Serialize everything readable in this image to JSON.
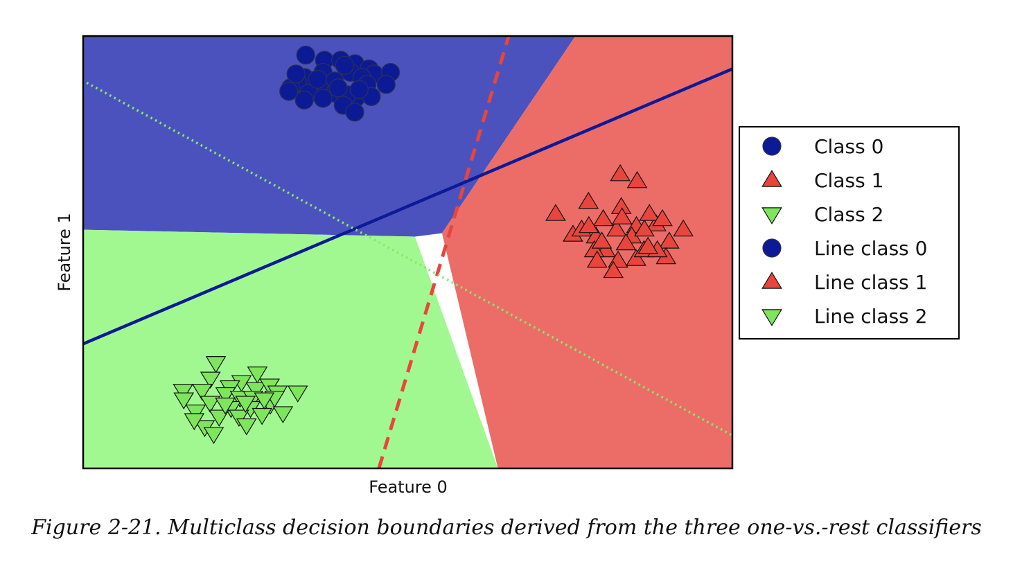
{
  "chart_data": {
    "type": "scatter",
    "title": "",
    "xlabel": "Feature 0",
    "ylabel": "Feature 1",
    "xlim": [
      -10,
      8
    ],
    "ylim": [
      -10,
      15
    ],
    "grid": false,
    "ticks_visible": false,
    "legend_location": "outside-right",
    "legend": [
      {
        "label": "Class 0",
        "marker": "circle",
        "color": "#0d1a96"
      },
      {
        "label": "Class 1",
        "marker": "triangle-up",
        "color": "#e8453c"
      },
      {
        "label": "Class 2",
        "marker": "triangle-down",
        "color": "#7ee65c"
      },
      {
        "label": "Line class 0",
        "marker": "circle",
        "color": "#0d1a96"
      },
      {
        "label": "Line class 1",
        "marker": "triangle-up",
        "color": "#e8453c"
      },
      {
        "label": "Line class 2",
        "marker": "triangle-down",
        "color": "#7ee65c"
      }
    ],
    "regions": [
      {
        "class": "Class 0",
        "color": "#4b52be",
        "polygon": [
          [
            -10,
            15
          ],
          [
            3.65,
            15
          ],
          [
            -0.05,
            3.6
          ],
          [
            -0.8,
            3.4
          ],
          [
            -10,
            3.8
          ]
        ]
      },
      {
        "class": "Class 1",
        "color": "#ec6d68",
        "polygon": [
          [
            3.65,
            15
          ],
          [
            8,
            15
          ],
          [
            8,
            -10
          ],
          [
            1.5,
            -10
          ],
          [
            -0.05,
            3.6
          ]
        ]
      },
      {
        "class": "Class 2",
        "color": "#a2f890",
        "polygon": [
          [
            -10,
            3.8
          ],
          [
            -0.8,
            3.4
          ],
          [
            1.5,
            -10
          ],
          [
            -10,
            -10
          ]
        ]
      }
    ],
    "decision_lines": [
      {
        "name": "Line class 0",
        "style": "solid",
        "color": "#0d1a96",
        "points": [
          [
            -10,
            -2.8
          ],
          [
            8,
            13.1
          ]
        ]
      },
      {
        "name": "Line class 1",
        "style": "dashed",
        "color": "#e8453c",
        "points": [
          [
            -1.8,
            -10
          ],
          [
            1.8,
            15
          ]
        ]
      },
      {
        "name": "Line class 2",
        "style": "dotted",
        "color": "#86e86b",
        "points": [
          [
            -9.9,
            12.3
          ],
          [
            8,
            -8.1
          ]
        ]
      }
    ],
    "series": [
      {
        "name": "Class 0",
        "marker": "circle",
        "color": "#0d1a96",
        "points": [
          [
            -3.83,
            13.9
          ],
          [
            -3.31,
            13.6
          ],
          [
            -2.86,
            13.6
          ],
          [
            -2.46,
            13.4
          ],
          [
            -2.07,
            13.1
          ],
          [
            -3.35,
            12.9
          ],
          [
            -2.59,
            12.9
          ],
          [
            -1.93,
            12.8
          ],
          [
            -1.48,
            12.9
          ],
          [
            -2.27,
            12.6
          ],
          [
            -3.03,
            12.4
          ],
          [
            -3.86,
            12.6
          ],
          [
            -4.06,
            12.3
          ],
          [
            -3.45,
            12.0
          ],
          [
            -2.13,
            12.2
          ],
          [
            -1.6,
            12.2
          ],
          [
            -4.25,
            12.0
          ],
          [
            -3.74,
            11.7
          ],
          [
            -3.03,
            11.7
          ],
          [
            -2.45,
            11.4
          ],
          [
            -3.87,
            11.3
          ],
          [
            -3.35,
            11.4
          ],
          [
            -2.68,
            11.6
          ],
          [
            -2.01,
            11.5
          ],
          [
            -2.79,
            11.0
          ],
          [
            -2.47,
            10.6
          ],
          [
            -4.3,
            11.8
          ],
          [
            -2.93,
            12.0
          ],
          [
            -2.35,
            11.9
          ],
          [
            -3.5,
            12.5
          ],
          [
            -2.75,
            13.3
          ],
          [
            -4.1,
            12.8
          ]
        ]
      },
      {
        "name": "Class 1",
        "marker": "triangle-up",
        "color": "#e8453c",
        "points": [
          [
            4.89,
            7.0
          ],
          [
            5.36,
            6.6
          ],
          [
            3.1,
            4.7
          ],
          [
            3.58,
            3.5
          ],
          [
            4.01,
            5.4
          ],
          [
            4.42,
            4.4
          ],
          [
            4.92,
            5.1
          ],
          [
            5.34,
            4.0
          ],
          [
            5.89,
            4.1
          ],
          [
            6.64,
            3.8
          ],
          [
            3.82,
            3.8
          ],
          [
            4.22,
            3.4
          ],
          [
            4.79,
            3.8
          ],
          [
            5.21,
            3.4
          ],
          [
            5.56,
            3.8
          ],
          [
            6.25,
            3.1
          ],
          [
            4.49,
            2.6
          ],
          [
            4.83,
            2.0
          ],
          [
            5.33,
            2.1
          ],
          [
            6.16,
            2.2
          ],
          [
            4.17,
            2.6
          ],
          [
            5.05,
            3.0
          ],
          [
            5.55,
            2.6
          ],
          [
            4.7,
            1.4
          ],
          [
            4.38,
            3.1
          ],
          [
            4.94,
            4.5
          ],
          [
            5.7,
            4.7
          ],
          [
            5.92,
            2.6
          ],
          [
            4.02,
            4.0
          ],
          [
            6.06,
            4.4
          ],
          [
            5.66,
            2.8
          ],
          [
            4.25,
            2.0
          ]
        ]
      },
      {
        "name": "Class 2",
        "marker": "triangle-down",
        "color": "#7ee65c",
        "points": [
          [
            -6.32,
            -3.9
          ],
          [
            -5.17,
            -4.5
          ],
          [
            -6.47,
            -4.8
          ],
          [
            -5.61,
            -5.0
          ],
          [
            -5.93,
            -5.3
          ],
          [
            -5.21,
            -5.4
          ],
          [
            -4.83,
            -5.2
          ],
          [
            -7.23,
            -5.5
          ],
          [
            -6.7,
            -5.5
          ],
          [
            -6.05,
            -5.7
          ],
          [
            -5.65,
            -5.9
          ],
          [
            -5.29,
            -5.9
          ],
          [
            -4.61,
            -5.6
          ],
          [
            -4.05,
            -5.6
          ],
          [
            -7.21,
            -6.0
          ],
          [
            -6.48,
            -6.2
          ],
          [
            -5.9,
            -6.5
          ],
          [
            -5.36,
            -6.5
          ],
          [
            -4.81,
            -6.3
          ],
          [
            -6.88,
            -6.7
          ],
          [
            -6.23,
            -7.0
          ],
          [
            -5.68,
            -7.0
          ],
          [
            -5.04,
            -6.9
          ],
          [
            -4.46,
            -6.8
          ],
          [
            -6.63,
            -7.6
          ],
          [
            -5.47,
            -7.5
          ],
          [
            -6.38,
            -8.0
          ],
          [
            -4.69,
            -5.9
          ],
          [
            -6.06,
            -6.3
          ],
          [
            -5.5,
            -6.2
          ],
          [
            -4.98,
            -6.0
          ],
          [
            -6.92,
            -7.2
          ]
        ]
      }
    ]
  },
  "caption": "Figure 2-21. Multiclass decision boundaries derived from the three one-vs.-rest classifiers"
}
